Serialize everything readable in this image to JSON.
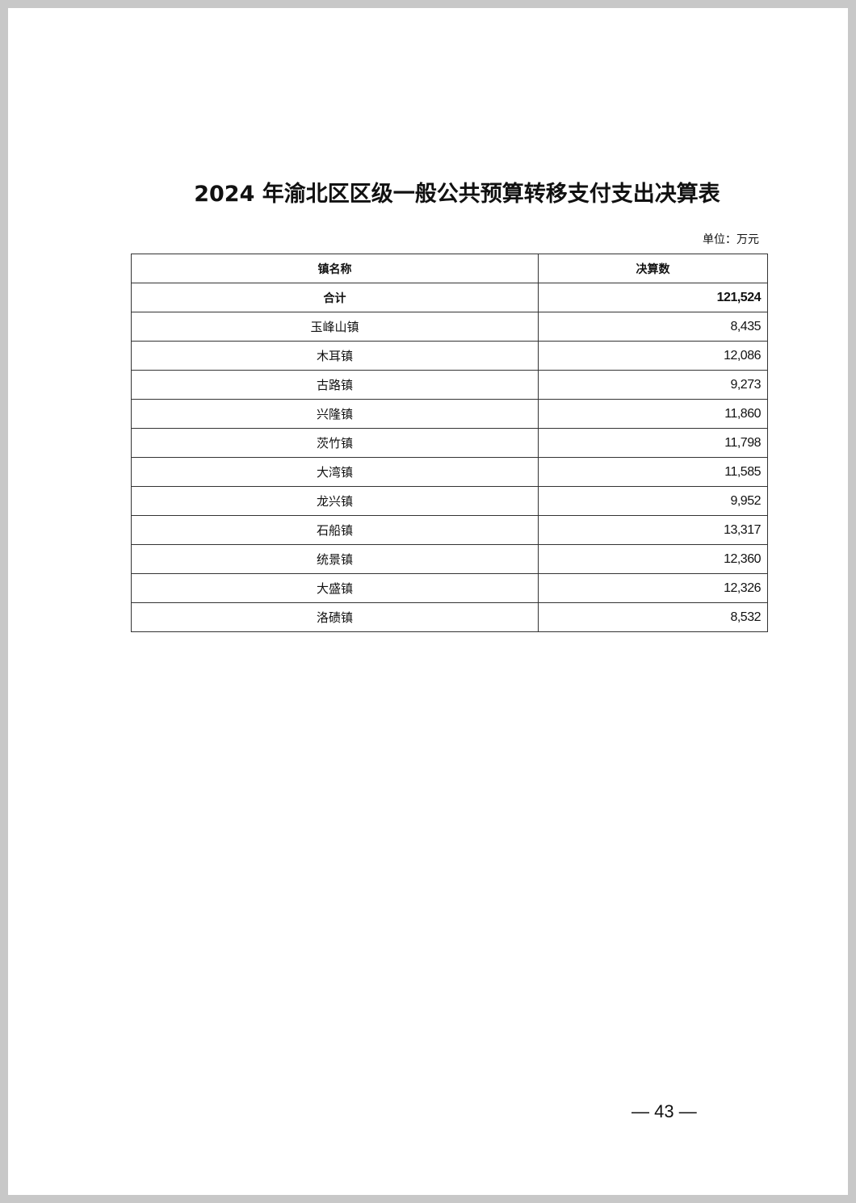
{
  "title": "2024 年渝北区区级一般公共预算转移支付支出决算表",
  "unit": "单位：万元",
  "table": {
    "headers": [
      "镇名称",
      "决算数"
    ],
    "total": {
      "name": "合计",
      "value": "121,524"
    },
    "rows": [
      {
        "name": "玉峰山镇",
        "value": "8,435"
      },
      {
        "name": "木耳镇",
        "value": "12,086"
      },
      {
        "name": "古路镇",
        "value": "9,273"
      },
      {
        "name": "兴隆镇",
        "value": "11,860"
      },
      {
        "name": "茨竹镇",
        "value": "11,798"
      },
      {
        "name": "大湾镇",
        "value": "11,585"
      },
      {
        "name": "龙兴镇",
        "value": "9,952"
      },
      {
        "name": "石船镇",
        "value": "13,317"
      },
      {
        "name": "统景镇",
        "value": "12,360"
      },
      {
        "name": "大盛镇",
        "value": "12,326"
      },
      {
        "name": "洛碛镇",
        "value": "8,532"
      }
    ]
  },
  "page_number": "— 43 —"
}
